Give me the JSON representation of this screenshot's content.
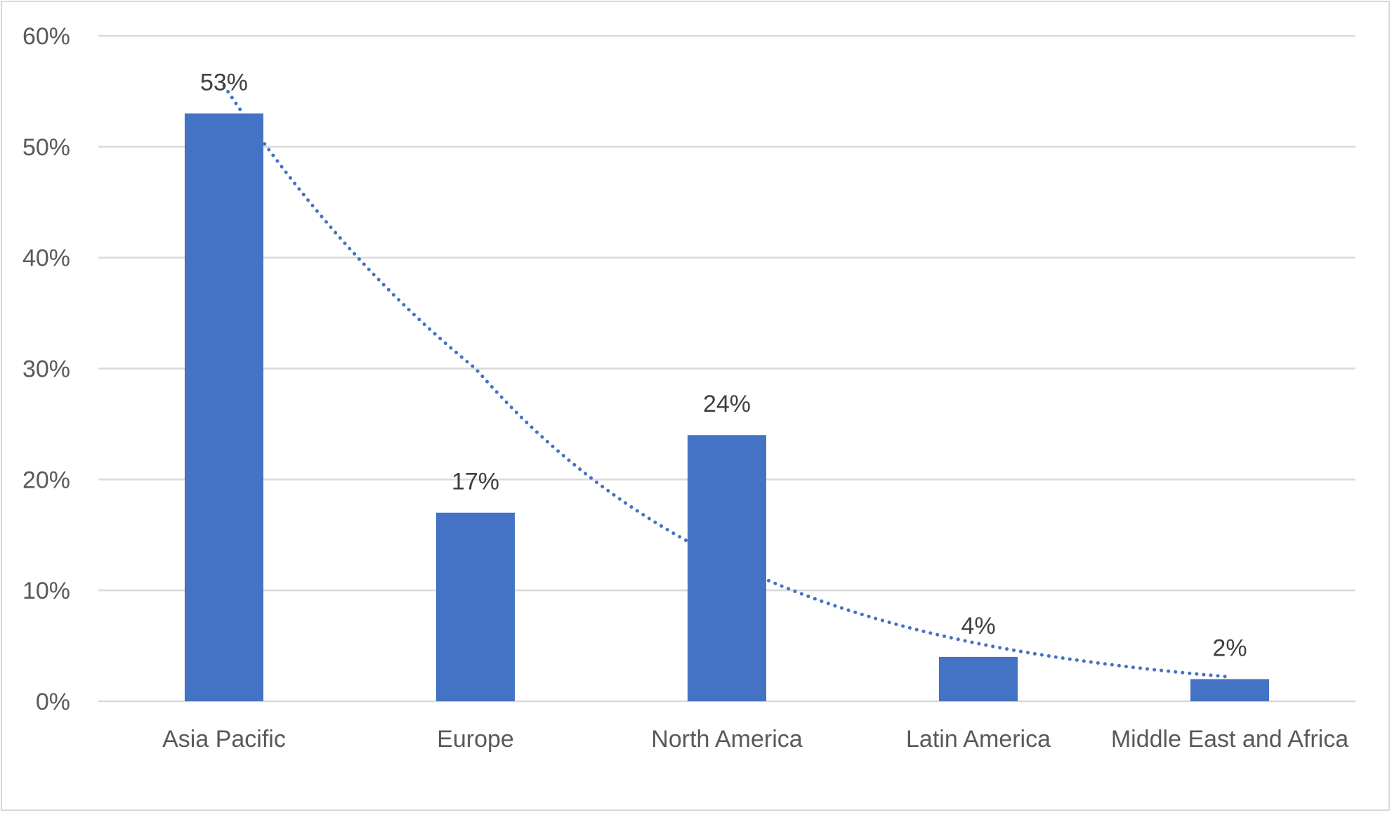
{
  "chart_data": {
    "type": "bar",
    "title": "",
    "xlabel": "",
    "ylabel": "",
    "categories": [
      "Asia Pacific",
      "Europe",
      "North America",
      "Latin America",
      "Middle East and Africa"
    ],
    "values": [
      53,
      17,
      24,
      4,
      2
    ],
    "data_labels": [
      "53%",
      "17%",
      "24%",
      "4%",
      "2%"
    ],
    "ylim": [
      0,
      60
    ],
    "yticks": [
      0,
      10,
      20,
      30,
      40,
      50,
      60
    ],
    "ytick_labels": [
      "0%",
      "10%",
      "20%",
      "30%",
      "40%",
      "50%",
      "60%"
    ],
    "grid": true,
    "legend": "none",
    "bar_color": "#4472c4",
    "trendline": {
      "type": "exponential",
      "style": "dotted",
      "color": "#4472c4",
      "values": [
        55.5,
        30.0,
        12.6,
        5.2,
        2.2
      ]
    }
  }
}
